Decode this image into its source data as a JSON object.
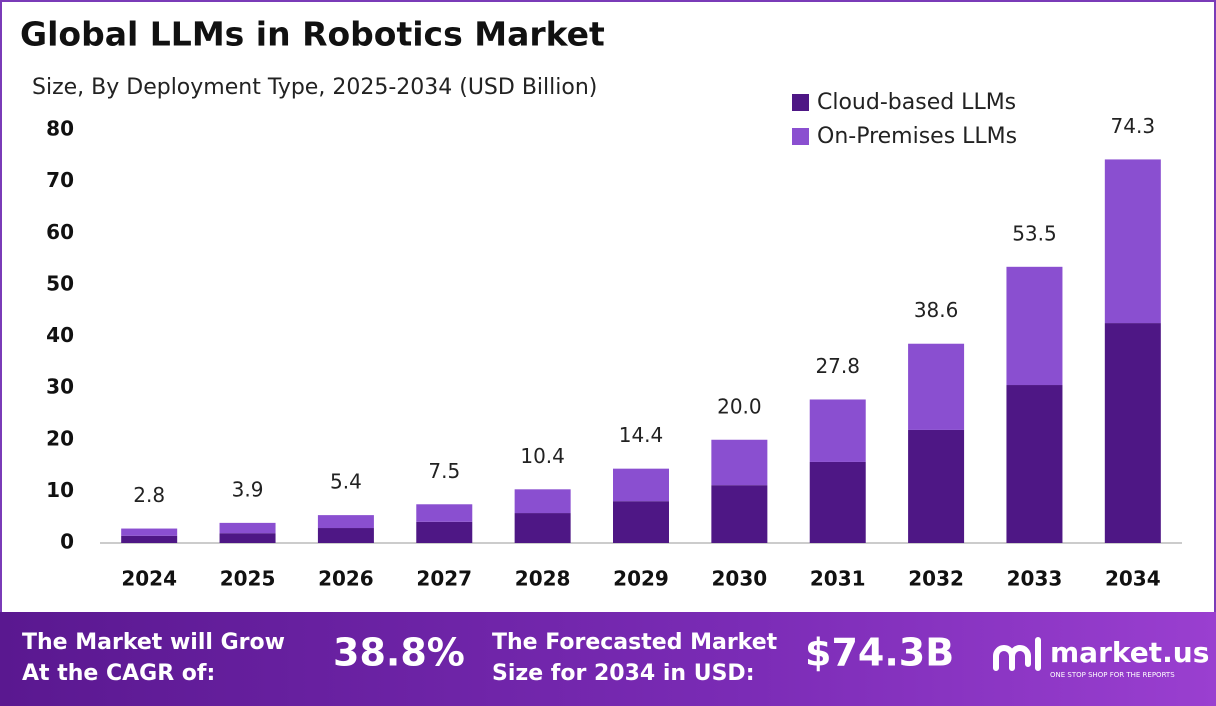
{
  "chart_data": {
    "type": "stacked-bar",
    "title": "Global LLMs in Robotics Market",
    "subtitle": "Size, By Deployment Type, 2025-2034 (USD Billion)",
    "categories": [
      "2024",
      "2025",
      "2026",
      "2027",
      "2028",
      "2029",
      "2030",
      "2031",
      "2032",
      "2033",
      "2034"
    ],
    "series": [
      {
        "name": "Cloud-based LLMs",
        "color": "#4e1785",
        "values": [
          1.4,
          1.9,
          2.9,
          4.1,
          5.8,
          8.1,
          11.2,
          15.7,
          21.9,
          30.6,
          42.6
        ]
      },
      {
        "name": "On-Premises LLMs",
        "color": "#8a4fd0",
        "values": [
          1.4,
          2.0,
          2.5,
          3.4,
          4.6,
          6.3,
          8.8,
          12.1,
          16.7,
          22.9,
          31.7
        ]
      }
    ],
    "totals": [
      2.8,
      3.9,
      5.4,
      7.5,
      10.4,
      14.4,
      20,
      27.8,
      38.6,
      53.5,
      74.3
    ],
    "total_labels": [
      "2.8",
      "3.9",
      "5.4",
      "7.5",
      "10.4",
      "14.4",
      "20.0",
      "27.8",
      "38.6",
      "53.5",
      "74.3"
    ],
    "ylim": [
      0,
      80
    ],
    "yticks": [
      0,
      10,
      20,
      30,
      40,
      50,
      60,
      70,
      80
    ],
    "grid": false,
    "legend": "top-right"
  },
  "footer": {
    "cagr_text": [
      "The Market will Grow",
      "At the CAGR of:"
    ],
    "cagr_value": "38.8%",
    "forecast_text": [
      "The Forecasted Market",
      "Size for 2034 in USD:"
    ],
    "forecast_value": "$74.3B",
    "brand": "market.us",
    "tagline": "ONE STOP SHOP FOR THE REPORTS"
  }
}
